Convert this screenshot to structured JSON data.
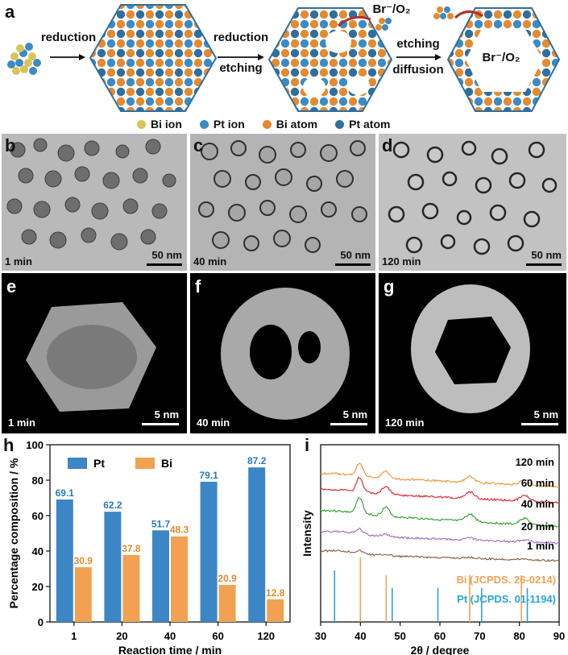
{
  "panel_a": {
    "label": "a",
    "step1": "reduction",
    "step2_line1": "reduction",
    "step2_line2": "etching",
    "step3_line1": "etching",
    "step3_line2": "diffusion",
    "species_top": "Br⁻/O₂",
    "species_ring": "Br⁻/O₂",
    "legend": [
      {
        "label": "Bi ion",
        "color": "#d8c45a"
      },
      {
        "label": "Pt ion",
        "color": "#3b8bc4"
      },
      {
        "label": "Bi atom",
        "color": "#e48a2f"
      },
      {
        "label": "Pt atom",
        "color": "#2f6f9e"
      }
    ]
  },
  "tem_panels": [
    {
      "label": "b",
      "time": "1 min",
      "scale": "50 nm"
    },
    {
      "label": "c",
      "time": "40 min",
      "scale": "50 nm"
    },
    {
      "label": "d",
      "time": "120 min",
      "scale": "50 nm"
    }
  ],
  "stem_panels": [
    {
      "label": "e",
      "time": "1 min",
      "scale": "5 nm"
    },
    {
      "label": "f",
      "time": "40 min",
      "scale": "5 nm"
    },
    {
      "label": "g",
      "time": "120 min",
      "scale": "5 nm"
    }
  ],
  "chart_data": [
    {
      "panel": "h",
      "type": "bar",
      "categories": [
        "1",
        "20",
        "40",
        "60",
        "120"
      ],
      "series": [
        {
          "name": "Pt",
          "values": [
            69.1,
            62.2,
            51.7,
            79.1,
            87.2
          ],
          "color": "#3d86c6"
        },
        {
          "name": "Bi",
          "values": [
            30.9,
            37.8,
            48.3,
            20.9,
            12.8
          ],
          "color": "#f0a252"
        }
      ],
      "value_labels_pt": [
        "69.1",
        "62.2",
        "51.7",
        "79.1",
        "87.2"
      ],
      "value_labels_bi": [
        "30.9",
        "37.8",
        "48.3",
        "20.9",
        "12.8"
      ],
      "xlabel": "Reaction time / min",
      "ylabel": "Percentage composition / %",
      "ylim": [
        0,
        100
      ],
      "yticks": [
        "0",
        "20",
        "40",
        "60",
        "80",
        "100"
      ],
      "legend_position": "top-left"
    },
    {
      "panel": "i",
      "type": "line",
      "xlabel": "2θ / degree",
      "ylabel": "Intensity",
      "xlim": [
        30,
        90
      ],
      "xticks": [
        "30",
        "40",
        "50",
        "60",
        "70",
        "80",
        "90"
      ],
      "series": [
        {
          "name": "120 min",
          "color": "#f0902e"
        },
        {
          "name": "60 min",
          "color": "#d8202e"
        },
        {
          "name": "40 min",
          "color": "#2aa02a"
        },
        {
          "name": "20 min",
          "color": "#9b6fc0"
        },
        {
          "name": "1 min",
          "color": "#8a5a3a"
        }
      ],
      "references": [
        {
          "name": "Bi (JCPDS. 26-0214)",
          "color": "#f0a252",
          "peaks": [
            40.0,
            46.5,
            67.5,
            80.5
          ]
        },
        {
          "name": "Pt (JCPDS. 01-1194)",
          "color": "#2aa3d8",
          "peaks": [
            33.5,
            48.0,
            59.5,
            70.5,
            82.0
          ]
        }
      ]
    }
  ]
}
